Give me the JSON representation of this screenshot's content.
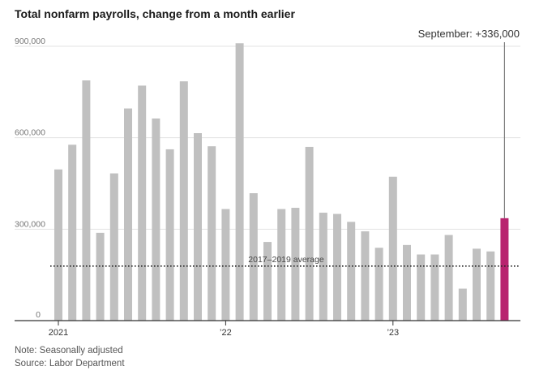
{
  "title": "Total nonfarm payrolls, change from a month earlier",
  "note": "Note: Seasonally adjusted",
  "source": "Source: Labor Department",
  "colors": {
    "bar": "#c0c0c0",
    "highlight": "#b8246f",
    "gridline": "#e3e3e3",
    "axis": "#333333",
    "average_line": "#222222"
  },
  "chart_data": {
    "type": "bar",
    "categories": [
      "2021-01",
      "2021-02",
      "2021-03",
      "2021-04",
      "2021-05",
      "2021-06",
      "2021-07",
      "2021-08",
      "2021-09",
      "2021-10",
      "2021-11",
      "2021-12",
      "2022-01",
      "2022-02",
      "2022-03",
      "2022-04",
      "2022-05",
      "2022-06",
      "2022-07",
      "2022-08",
      "2022-09",
      "2022-10",
      "2022-11",
      "2022-12",
      "2023-01",
      "2023-02",
      "2023-03",
      "2023-04",
      "2023-05",
      "2023-06",
      "2023-07",
      "2023-08",
      "2023-09"
    ],
    "values": [
      496000,
      577000,
      788000,
      288000,
      483000,
      696000,
      771000,
      663000,
      562000,
      785000,
      615000,
      572000,
      366000,
      910000,
      418000,
      258000,
      366000,
      370000,
      570000,
      354000,
      350000,
      324000,
      293000,
      239000,
      472000,
      248000,
      217000,
      217000,
      281000,
      105000,
      236000,
      227000,
      336000
    ],
    "highlight_index": 32,
    "ylim": [
      0,
      900000
    ],
    "yticks": [
      {
        "value": 0,
        "label": "0"
      },
      {
        "value": 300000,
        "label": "300,000"
      },
      {
        "value": 600000,
        "label": "600,000"
      },
      {
        "value": 900000,
        "label": "900,000"
      }
    ],
    "xticks": [
      {
        "index": 0,
        "label": "2021"
      },
      {
        "index": 12,
        "label": "’22"
      },
      {
        "index": 24,
        "label": "’23"
      }
    ],
    "reference_line": {
      "value": 179000,
      "label": "2017–2019 average"
    },
    "annotation": "September: +336,000",
    "xlabel": "",
    "ylabel": "",
    "grid": true
  }
}
